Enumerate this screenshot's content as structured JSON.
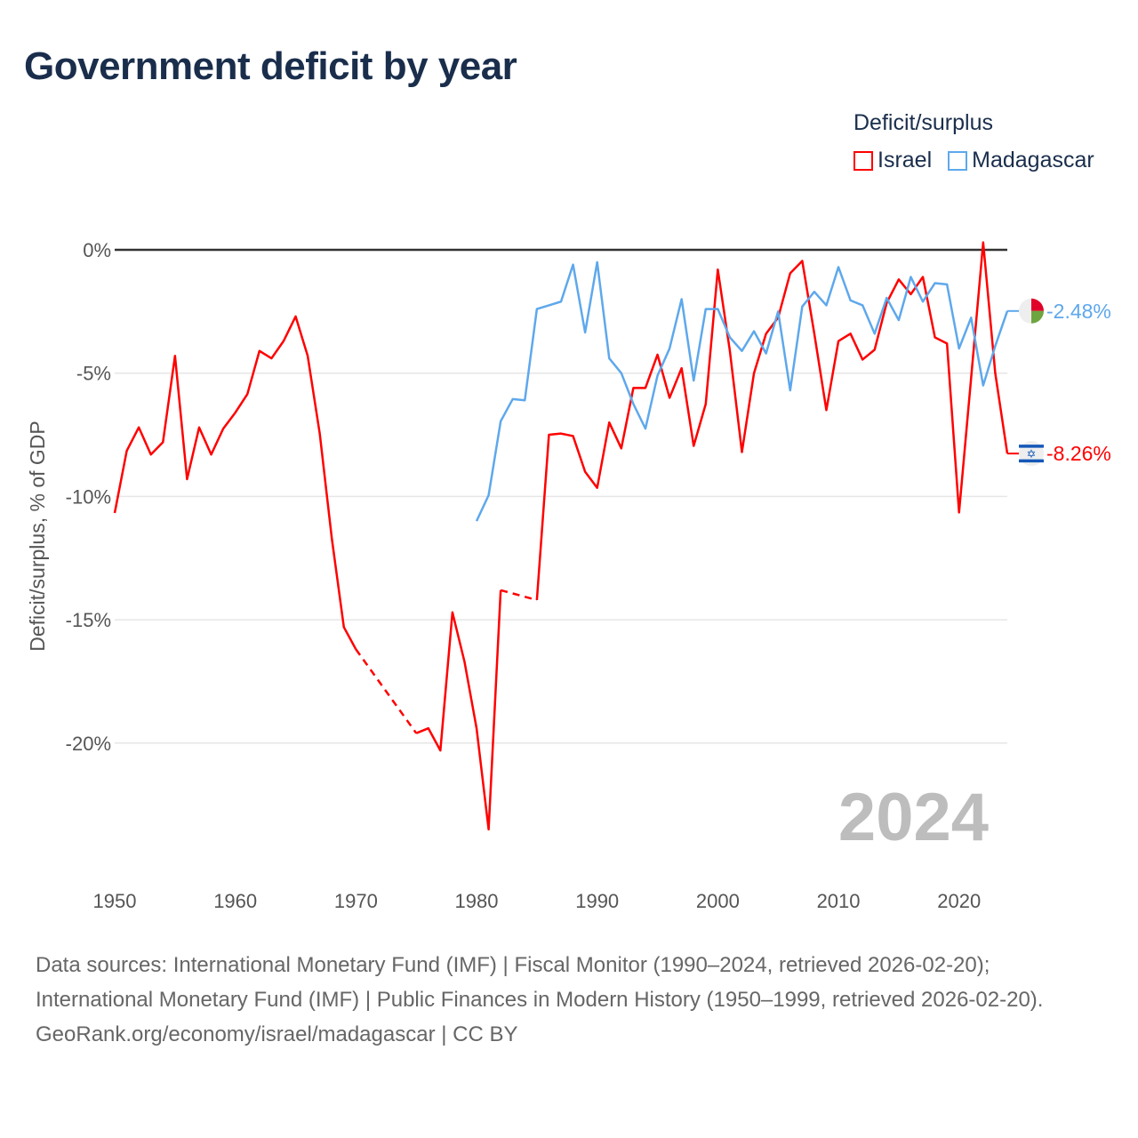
{
  "title": "Government deficit by year",
  "legend": {
    "title": "Deficit/surplus",
    "items": [
      {
        "label": "Israel",
        "color": "#ff0000"
      },
      {
        "label": "Madagascar",
        "color": "#5ea8ec"
      }
    ]
  },
  "chart_data": {
    "type": "line",
    "title": "Government deficit by year",
    "xlabel": "",
    "ylabel": "Deficit/surplus, % of GDP",
    "xlim": [
      1950,
      2024
    ],
    "ylim": [
      -24,
      0.5
    ],
    "x_ticks": [
      "1950",
      "1960",
      "1970",
      "1980",
      "1990",
      "2000",
      "2010",
      "2020"
    ],
    "y_ticks": [
      {
        "value": 0,
        "label": "0%"
      },
      {
        "value": -5,
        "label": "-5%"
      },
      {
        "value": -10,
        "label": "-10%"
      },
      {
        "value": -15,
        "label": "-15%"
      },
      {
        "value": -20,
        "label": "-20%"
      }
    ],
    "grid": true,
    "current_year": "2024",
    "series": [
      {
        "name": "Israel",
        "color": "#ff0000",
        "end_label": "-8.26%",
        "start_year": 1950,
        "values": [
          -10.67,
          -8.15,
          -7.2,
          -8.3,
          -7.8,
          -4.3,
          -9.3,
          -7.2,
          -8.3,
          -7.25,
          -6.6,
          -5.85,
          -4.1,
          -4.4,
          -3.7,
          -2.7,
          -4.3,
          -7.45,
          -11.7,
          -15.3,
          -16.2,
          null,
          null,
          null,
          null,
          -19.6,
          -19.4,
          -20.3,
          -14.7,
          -16.7,
          -19.4,
          -23.5,
          -13.8,
          null,
          null,
          -14.2,
          -7.5,
          -7.45,
          -7.55,
          -9.0,
          -9.65,
          -7.0,
          -8.05,
          -5.6,
          -5.6,
          -4.25,
          -6.0,
          -4.8,
          -7.95,
          -6.25,
          -0.8,
          -4.1,
          -8.2,
          -5.0,
          -3.4,
          -2.75,
          -0.95,
          -0.45,
          -3.4,
          -6.5,
          -3.7,
          -3.4,
          -4.45,
          -4.05,
          -2.15,
          -1.2,
          -1.8,
          -1.1,
          -3.55,
          -3.8,
          -10.65,
          -5.2,
          0.3,
          -5.0,
          -8.26
        ]
      },
      {
        "name": "Madagascar",
        "color": "#5ea8ec",
        "end_label": "-2.48%",
        "start_year": 1980,
        "values": [
          -11.0,
          -9.95,
          -6.95,
          -6.05,
          -6.1,
          -2.4,
          -2.25,
          -2.1,
          -0.6,
          -3.35,
          -0.5,
          -4.4,
          -5.0,
          -6.25,
          -7.25,
          -5.1,
          -4.0,
          -2.0,
          -5.3,
          -2.4,
          -2.4,
          -3.55,
          -4.1,
          -3.3,
          -4.2,
          -2.5,
          -5.7,
          -2.3,
          -1.7,
          -2.25,
          -0.7,
          -2.05,
          -2.25,
          -3.4,
          -1.95,
          -2.85,
          -1.1,
          -2.1,
          -1.35,
          -1.4,
          -4.0,
          -2.75,
          -5.5,
          -3.9,
          -2.48
        ]
      }
    ]
  },
  "footer": {
    "sources": "Data sources: International Monetary Fund (IMF) | Fiscal Monitor (1990–2024, retrieved 2026-02-20); International Monetary Fund (IMF) | Public Finances in Modern History (1950–1999, retrieved 2026-02-20).",
    "credit": "GeoRank.org/economy/israel/madagascar | CC BY"
  }
}
